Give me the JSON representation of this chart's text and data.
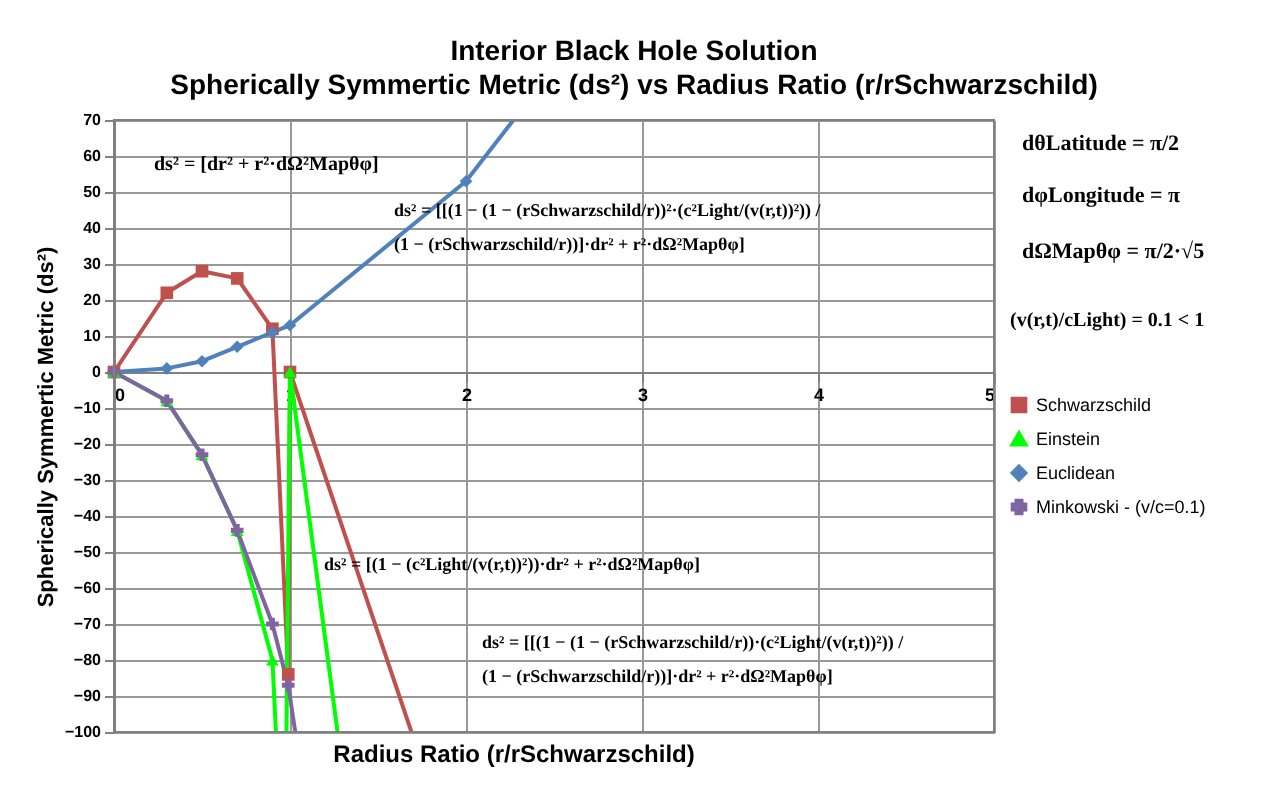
{
  "chart_data": {
    "type": "line",
    "title": "Interior Black Hole Solution",
    "subtitle": "Spherically Symmertic Metric (ds²) vs Radius Ratio (r/rSchwarzschild)",
    "xlabel": "Radius Ratio (r/rSchwarzschild)",
    "ylabel": "Spherically Symmertic Metric (ds²)",
    "series": [
      {
        "name": "Schwarzschild",
        "color": "#c0504d",
        "marker": "square",
        "x": [
          0,
          0.3,
          0.5,
          0.7,
          0.9,
          0.99,
          1.0,
          1.69
        ],
        "values": [
          0,
          22,
          28,
          26,
          12,
          -84,
          0,
          -100
        ]
      },
      {
        "name": "Einstein",
        "color": "#00ff00",
        "marker": "triangle",
        "x": [
          0,
          0.3,
          0.5,
          0.7,
          0.9,
          0.92,
          0.95,
          0.98,
          1.0,
          1.27
        ],
        "values": [
          0,
          -8,
          -23,
          -44,
          -80,
          -100,
          null,
          -100,
          0,
          -100
        ]
      },
      {
        "name": "Euclidean",
        "color": "#4f81bd",
        "marker": "diamond",
        "x": [
          0,
          0.3,
          0.5,
          0.7,
          0.9,
          1.0,
          2.0,
          2.27
        ],
        "values": [
          0,
          1,
          3,
          7,
          11,
          13,
          53,
          70
        ]
      },
      {
        "name": "Minkowski - (v/c=0.1)",
        "color": "#8064a2",
        "marker": "cross",
        "x": [
          0,
          0.3,
          0.5,
          0.7,
          0.9,
          0.99,
          1.03
        ],
        "values": [
          0,
          -8,
          -23,
          -44,
          -70,
          -87,
          -100
        ]
      }
    ],
    "xlim": [
      0,
      5
    ],
    "xticks": [
      0,
      1,
      2,
      3,
      4,
      5
    ],
    "ylim": [
      -100,
      70
    ],
    "yticks": [
      -100,
      -90,
      -80,
      -70,
      -60,
      -50,
      -40,
      -30,
      -20,
      -10,
      0,
      10,
      20,
      30,
      40,
      50,
      60,
      70
    ],
    "grid": true,
    "legend": "right",
    "annotations": [
      "ds² = [dr² + r²·dΩ²Mapθφ]",
      "ds² = [[(1 − (1 − (rSchwarzschild/r))²·(c²Light/(v(r,t))²)) /\n(1 − (rSchwarzschild/r))]·dr² + r²·dΩ²Mapθφ]",
      "ds² = [(1 − (c²Light/(v(r,t))²))·dr² + r²·dΩ²Mapθφ]",
      "ds² = [[(1 − (1 − (rSchwarzschild/r))·(c²Light/(v(r,t))²)) /\n(1 − (rSchwarzschild/r))]·dr² + r²·dΩ²Mapθφ]",
      "dθLatitude = π/2",
      "dφLongitude = π",
      "dΩMapθφ = π/2·√5",
      "(v(r,t)/cLight) = 0.1 < 1"
    ]
  }
}
